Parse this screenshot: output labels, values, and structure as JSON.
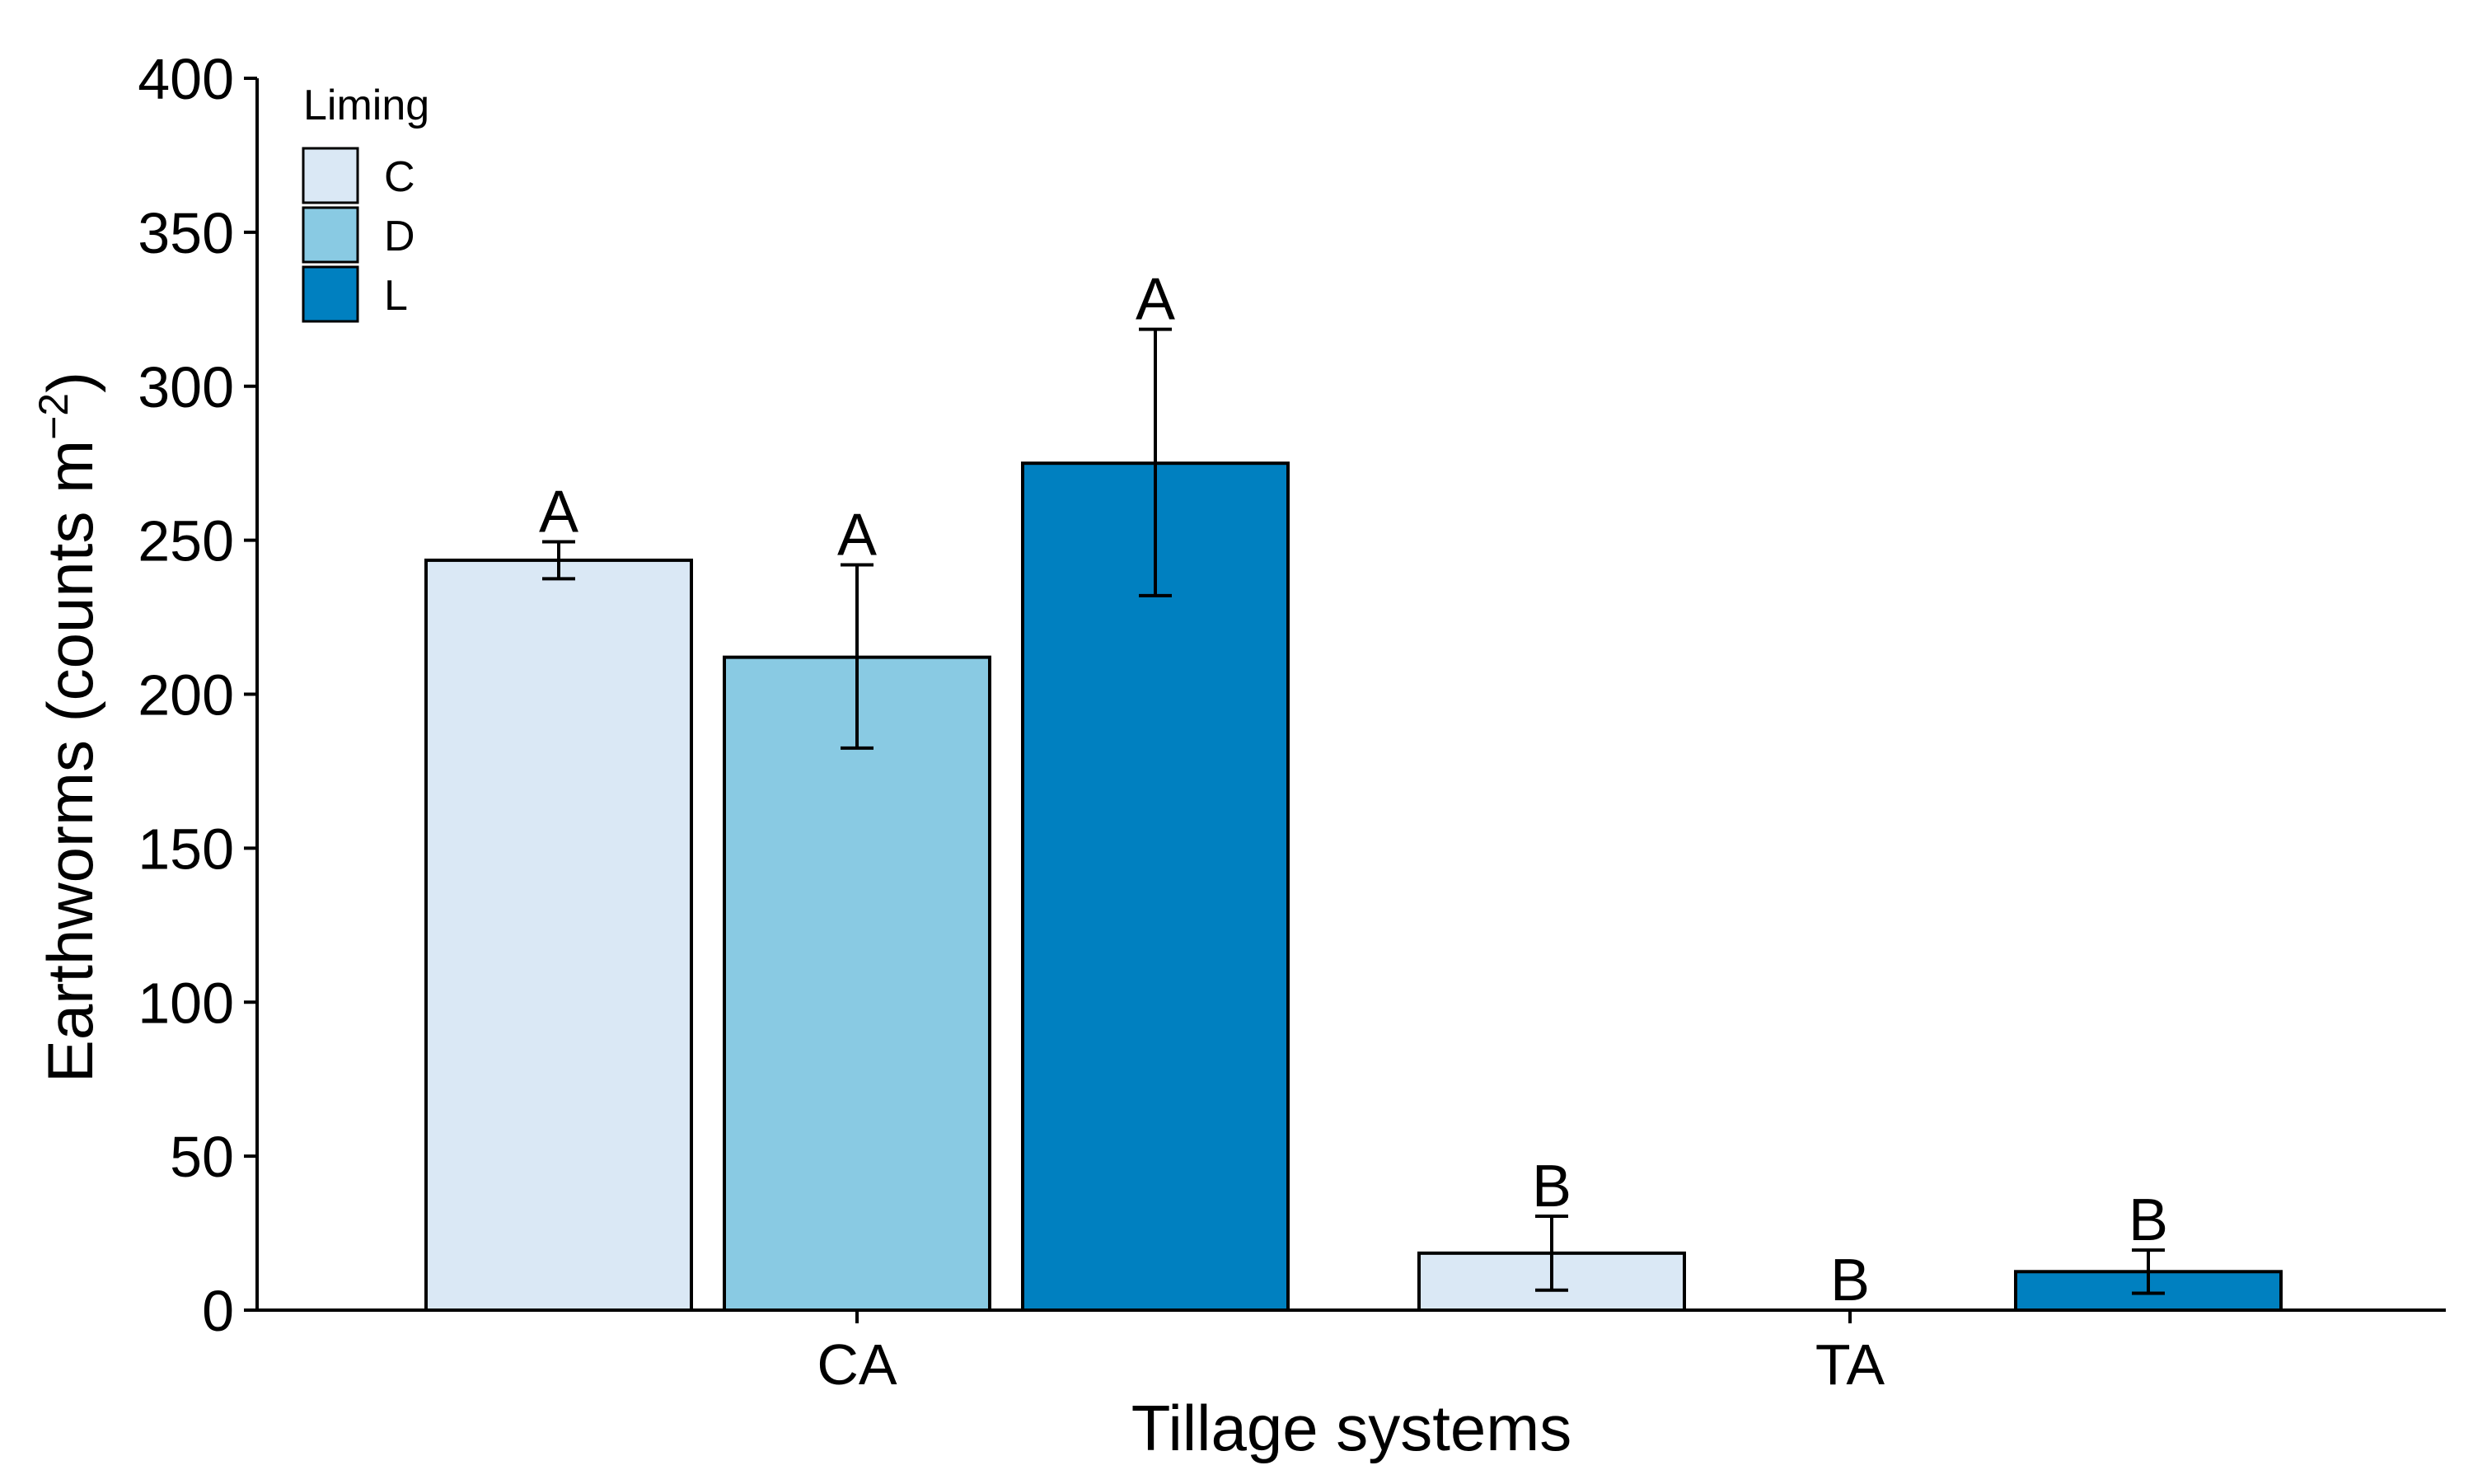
{
  "chart_data": {
    "type": "bar",
    "title": "",
    "xlabel": "Tillage systems",
    "ylabel_main": "Earthworms (counts m",
    "ylabel_sup": "−2",
    "ylabel_close": ")",
    "ylim": [
      0,
      400
    ],
    "yticks": [
      "0",
      "50",
      "100",
      "150",
      "200",
      "250",
      "300",
      "350",
      "400"
    ],
    "categories": [
      "CA",
      "TA"
    ],
    "legend": {
      "title": "Liming",
      "position": "top-left",
      "entries": [
        "C",
        "D",
        "L"
      ]
    },
    "series": [
      {
        "name": "C",
        "color": "#DAE8F5",
        "values": [
          243.5,
          18.5
        ],
        "err_low": [
          237.5,
          6.5
        ],
        "err_high": [
          249.5,
          30.5
        ],
        "labels": [
          "A",
          "B"
        ]
      },
      {
        "name": "D",
        "color": "#89CAE3",
        "values": [
          212,
          0
        ],
        "err_low": [
          182.5,
          0
        ],
        "err_high": [
          242,
          0
        ],
        "labels": [
          "A",
          "B"
        ]
      },
      {
        "name": "L",
        "color": "#0080C0",
        "values": [
          275,
          12.5
        ],
        "err_low": [
          232,
          5.5
        ],
        "err_high": [
          318.5,
          19.5
        ],
        "labels": [
          "A",
          "B"
        ]
      }
    ]
  }
}
